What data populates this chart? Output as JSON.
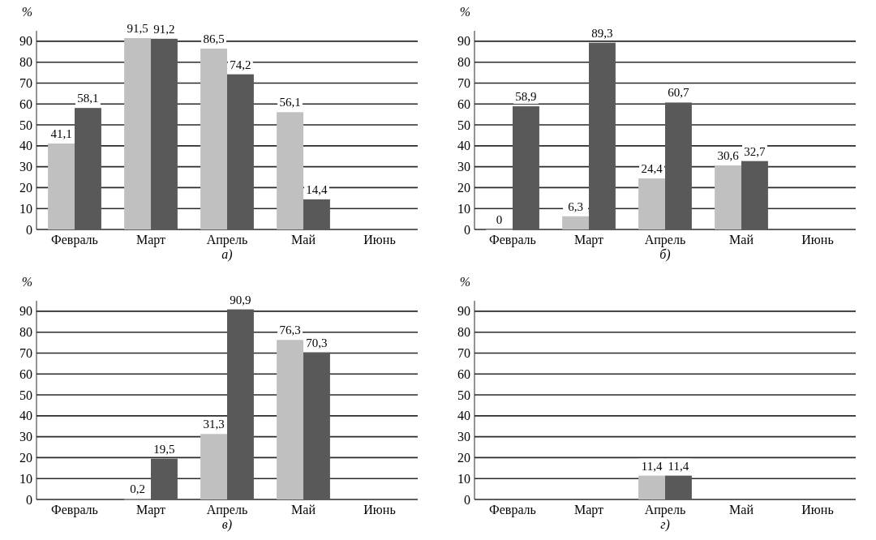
{
  "chart_data": [
    {
      "type": "bar",
      "xlabel": "а)",
      "ylabel": "%",
      "categories": [
        "Февраль",
        "Март",
        "Апрель",
        "Май",
        "Июнь"
      ],
      "ylim": [
        0,
        95
      ],
      "yticks": [
        0,
        10,
        20,
        30,
        40,
        50,
        60,
        70,
        80,
        90
      ],
      "grid": "y",
      "series": [
        {
          "color": "#c0c0c0",
          "values": [
            41.1,
            91.5,
            86.5,
            56.1,
            null
          ],
          "value_labels": [
            "41,1",
            "91,5",
            "86,5",
            "56,1",
            null
          ]
        },
        {
          "color": "#595959",
          "values": [
            58.1,
            91.2,
            74.2,
            14.4,
            null
          ],
          "value_labels": [
            "58,1",
            "91,2",
            "74,2",
            "14,4",
            null
          ]
        }
      ]
    },
    {
      "type": "bar",
      "xlabel": "б)",
      "ylabel": "%",
      "categories": [
        "Февраль",
        "Март",
        "Апрель",
        "Май",
        "Июнь"
      ],
      "ylim": [
        0,
        95
      ],
      "yticks": [
        0,
        10,
        20,
        30,
        40,
        50,
        60,
        70,
        80,
        90
      ],
      "grid": "y",
      "series": [
        {
          "color": "#c0c0c0",
          "values": [
            0,
            6.3,
            24.4,
            30.6,
            null
          ],
          "value_labels": [
            "0",
            "6,3",
            "24,4",
            "30,6",
            null
          ]
        },
        {
          "color": "#595959",
          "values": [
            58.9,
            89.3,
            60.7,
            32.7,
            null
          ],
          "value_labels": [
            "58,9",
            "89,3",
            "60,7",
            "32,7",
            null
          ]
        }
      ]
    },
    {
      "type": "bar",
      "xlabel": "в)",
      "ylabel": "%",
      "categories": [
        "Февраль",
        "Март",
        "Апрель",
        "Май",
        "Июнь"
      ],
      "ylim": [
        0,
        95
      ],
      "yticks": [
        0,
        10,
        20,
        30,
        40,
        50,
        60,
        70,
        80,
        90
      ],
      "grid": "y",
      "series": [
        {
          "color": "#c0c0c0",
          "values": [
            null,
            0.2,
            31.3,
            76.3,
            null
          ],
          "value_labels": [
            null,
            "0,2",
            "31,3",
            "76,3",
            null
          ]
        },
        {
          "color": "#595959",
          "values": [
            null,
            19.5,
            90.9,
            70.3,
            null
          ],
          "value_labels": [
            null,
            "19,5",
            "90,9",
            "70,3",
            null
          ]
        }
      ]
    },
    {
      "type": "bar",
      "xlabel": "г)",
      "ylabel": "%",
      "categories": [
        "Февраль",
        "Март",
        "Апрель",
        "Май",
        "Июнь"
      ],
      "ylim": [
        0,
        95
      ],
      "yticks": [
        0,
        10,
        20,
        30,
        40,
        50,
        60,
        70,
        80,
        90
      ],
      "grid": "y",
      "series": [
        {
          "color": "#c0c0c0",
          "values": [
            null,
            null,
            11.4,
            null,
            null
          ],
          "value_labels": [
            null,
            null,
            "11,4",
            null,
            null
          ]
        },
        {
          "color": "#595959",
          "values": [
            null,
            null,
            11.4,
            null,
            null
          ],
          "value_labels": [
            null,
            null,
            "11,4",
            null,
            null
          ]
        }
      ]
    }
  ]
}
